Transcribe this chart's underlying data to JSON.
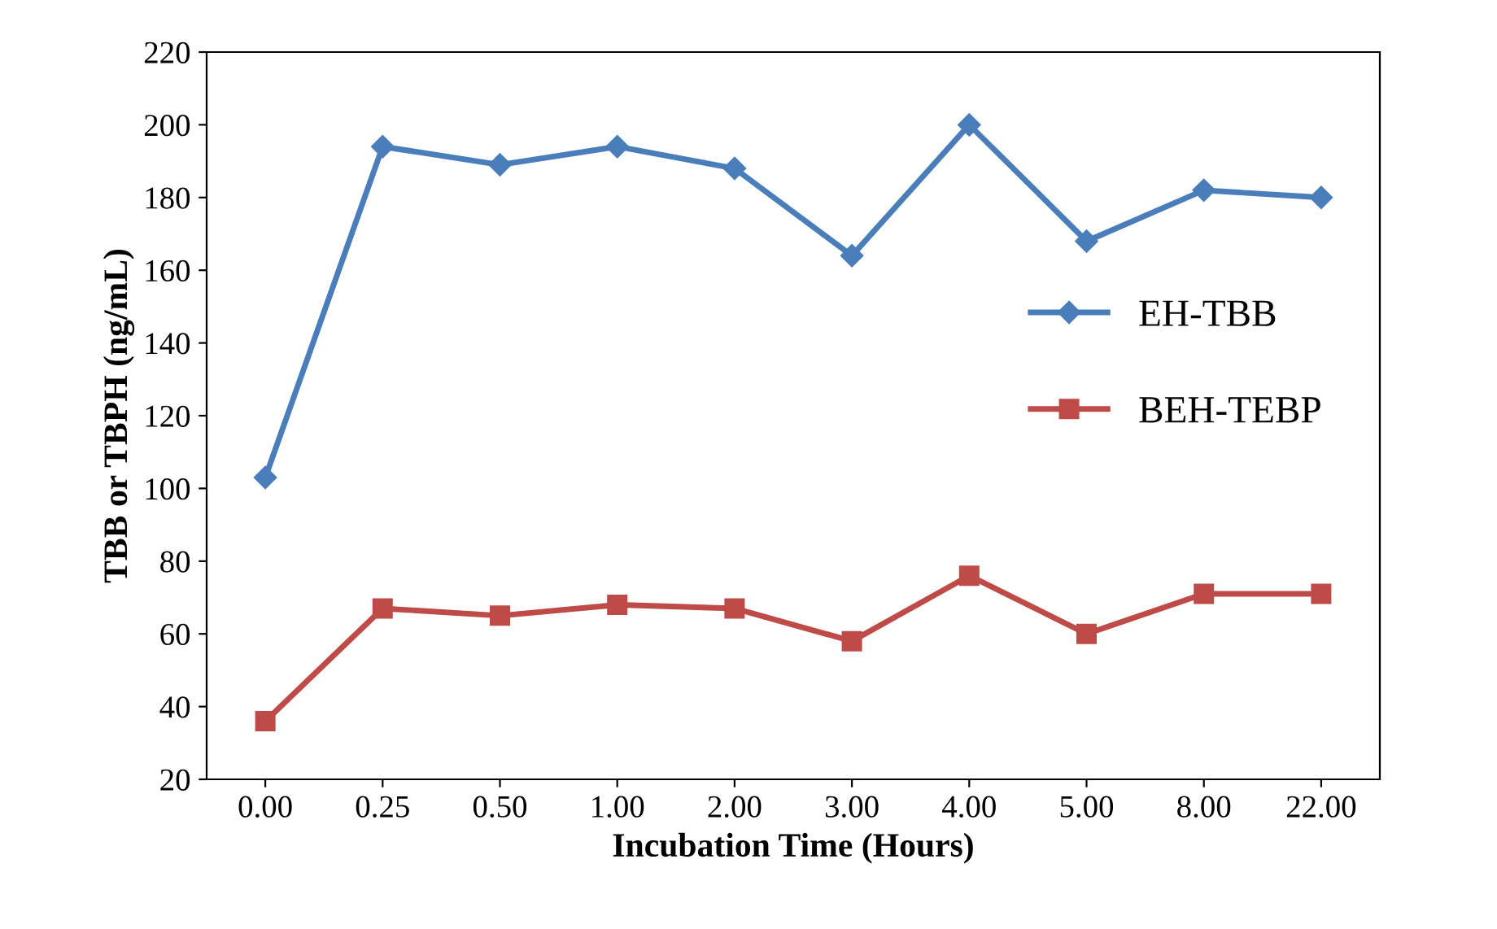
{
  "chart_data": {
    "type": "line",
    "xlabel": "Incubation Time (Hours)",
    "ylabel": "TBB or TBPH (ng/mL)",
    "categories": [
      "0.00",
      "0.25",
      "0.50",
      "1.00",
      "2.00",
      "3.00",
      "4.00",
      "5.00",
      "8.00",
      "22.00"
    ],
    "series": [
      {
        "name": "EH-TBB",
        "color": "#4a7ebb",
        "marker": "diamond",
        "values": [
          103,
          194,
          189,
          194,
          188,
          164,
          200,
          168,
          182,
          180
        ]
      },
      {
        "name": "BEH-TEBP",
        "color": "#be4b48",
        "marker": "square",
        "values": [
          36,
          67,
          65,
          68,
          67,
          58,
          76,
          60,
          71,
          71
        ]
      }
    ],
    "ylim": [
      20,
      220
    ],
    "yticks": [
      20,
      40,
      60,
      80,
      100,
      120,
      140,
      160,
      180,
      200,
      220
    ],
    "grid": false,
    "legend": "right"
  }
}
